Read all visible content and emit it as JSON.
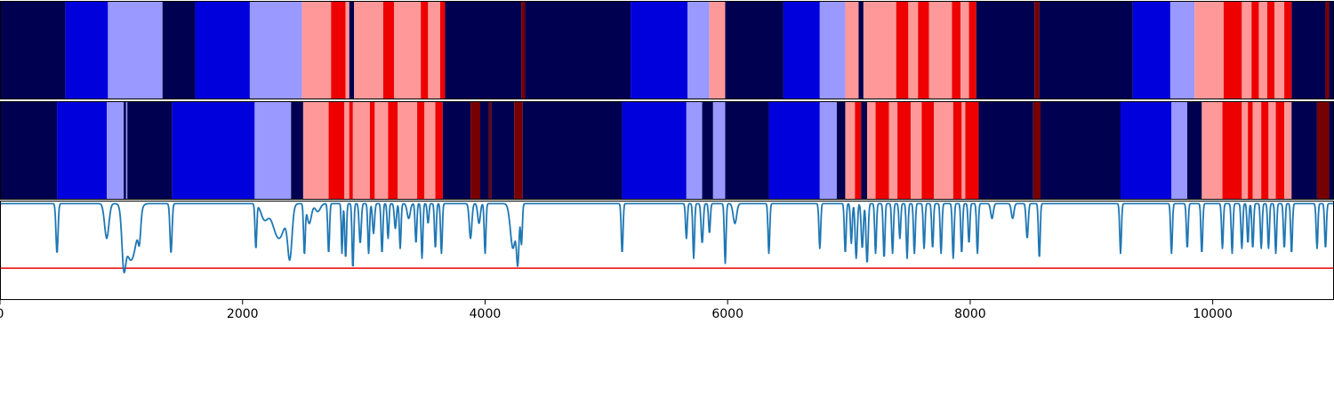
{
  "chart_data": [
    {
      "panel": "segmentation-track-1",
      "type": "heatmap",
      "xlim": [
        0,
        11000
      ],
      "palette": {
        "0": "#000050",
        "1": "#0000dd",
        "2": "#9999ff",
        "3": "#ff9999",
        "4": "#ee0000",
        "5": "#770000"
      },
      "segments": [
        [
          0,
          540,
          0
        ],
        [
          540,
          890,
          1
        ],
        [
          890,
          1340,
          2
        ],
        [
          1340,
          1610,
          0
        ],
        [
          1610,
          2060,
          1
        ],
        [
          2060,
          2490,
          2
        ],
        [
          2490,
          2730,
          3
        ],
        [
          2730,
          2850,
          4
        ],
        [
          2850,
          2880,
          3
        ],
        [
          2880,
          2920,
          0
        ],
        [
          2920,
          3160,
          3
        ],
        [
          3160,
          3250,
          4
        ],
        [
          3250,
          3470,
          3
        ],
        [
          3470,
          3530,
          4
        ],
        [
          3530,
          3630,
          3
        ],
        [
          3630,
          3670,
          4
        ],
        [
          3670,
          4300,
          0
        ],
        [
          4300,
          4330,
          5
        ],
        [
          4330,
          5200,
          0
        ],
        [
          5200,
          5670,
          1
        ],
        [
          5670,
          5850,
          2
        ],
        [
          5850,
          5980,
          3
        ],
        [
          5980,
          6460,
          0
        ],
        [
          6460,
          6760,
          1
        ],
        [
          6760,
          6970,
          2
        ],
        [
          6970,
          7080,
          3
        ],
        [
          7080,
          7120,
          0
        ],
        [
          7120,
          7390,
          3
        ],
        [
          7390,
          7490,
          4
        ],
        [
          7490,
          7570,
          3
        ],
        [
          7570,
          7660,
          4
        ],
        [
          7660,
          7850,
          3
        ],
        [
          7850,
          7920,
          4
        ],
        [
          7920,
          7990,
          3
        ],
        [
          7990,
          8050,
          4
        ],
        [
          8050,
          8530,
          0
        ],
        [
          8530,
          8570,
          5
        ],
        [
          8570,
          9340,
          0
        ],
        [
          9340,
          9650,
          1
        ],
        [
          9650,
          9850,
          2
        ],
        [
          9850,
          10090,
          3
        ],
        [
          10090,
          10240,
          4
        ],
        [
          10240,
          10320,
          3
        ],
        [
          10320,
          10380,
          4
        ],
        [
          10380,
          10450,
          3
        ],
        [
          10450,
          10510,
          4
        ],
        [
          10510,
          10590,
          3
        ],
        [
          10590,
          10650,
          4
        ],
        [
          10650,
          10930,
          0
        ],
        [
          10930,
          10960,
          5
        ],
        [
          10960,
          11000,
          0
        ]
      ]
    },
    {
      "panel": "segmentation-track-2",
      "type": "heatmap",
      "xlim": [
        0,
        11000
      ],
      "palette": {
        "0": "#000050",
        "1": "#0000dd",
        "2": "#9999ff",
        "3": "#ff9999",
        "4": "#ee0000",
        "5": "#770000"
      },
      "segments": [
        [
          0,
          470,
          0
        ],
        [
          470,
          880,
          1
        ],
        [
          880,
          1020,
          2
        ],
        [
          1020,
          1040,
          0
        ],
        [
          1040,
          1050,
          2
        ],
        [
          1050,
          1420,
          0
        ],
        [
          1420,
          2100,
          1
        ],
        [
          2100,
          2400,
          2
        ],
        [
          2400,
          2500,
          0
        ],
        [
          2500,
          2710,
          3
        ],
        [
          2710,
          2840,
          4
        ],
        [
          2840,
          2880,
          3
        ],
        [
          2880,
          2910,
          4
        ],
        [
          2910,
          3050,
          3
        ],
        [
          3050,
          3090,
          4
        ],
        [
          3090,
          3200,
          3
        ],
        [
          3200,
          3280,
          4
        ],
        [
          3280,
          3440,
          3
        ],
        [
          3440,
          3500,
          4
        ],
        [
          3500,
          3590,
          3
        ],
        [
          3590,
          3650,
          4
        ],
        [
          3650,
          3880,
          0
        ],
        [
          3880,
          3960,
          5
        ],
        [
          3960,
          4030,
          0
        ],
        [
          4030,
          4050,
          5
        ],
        [
          4050,
          4240,
          0
        ],
        [
          4240,
          4310,
          5
        ],
        [
          4310,
          5130,
          0
        ],
        [
          5130,
          5660,
          1
        ],
        [
          5660,
          5790,
          2
        ],
        [
          5790,
          5880,
          0
        ],
        [
          5880,
          5980,
          2
        ],
        [
          5980,
          6340,
          0
        ],
        [
          6340,
          6760,
          1
        ],
        [
          6760,
          6900,
          2
        ],
        [
          6900,
          6970,
          0
        ],
        [
          6970,
          7050,
          3
        ],
        [
          7050,
          7100,
          4
        ],
        [
          7100,
          7150,
          0
        ],
        [
          7150,
          7220,
          3
        ],
        [
          7220,
          7330,
          4
        ],
        [
          7330,
          7400,
          3
        ],
        [
          7400,
          7510,
          4
        ],
        [
          7510,
          7600,
          3
        ],
        [
          7600,
          7700,
          4
        ],
        [
          7700,
          7860,
          3
        ],
        [
          7860,
          7930,
          4
        ],
        [
          7930,
          7960,
          3
        ],
        [
          7960,
          8070,
          4
        ],
        [
          8070,
          8520,
          0
        ],
        [
          8520,
          8580,
          5
        ],
        [
          8580,
          9240,
          0
        ],
        [
          9240,
          9660,
          1
        ],
        [
          9660,
          9790,
          2
        ],
        [
          9790,
          9910,
          0
        ],
        [
          9910,
          10080,
          3
        ],
        [
          10080,
          10240,
          4
        ],
        [
          10240,
          10290,
          3
        ],
        [
          10290,
          10330,
          4
        ],
        [
          10330,
          10400,
          3
        ],
        [
          10400,
          10460,
          4
        ],
        [
          10460,
          10520,
          3
        ],
        [
          10520,
          10590,
          4
        ],
        [
          10590,
          10650,
          3
        ],
        [
          10650,
          10860,
          0
        ],
        [
          10860,
          10960,
          5
        ],
        [
          10960,
          11000,
          0
        ]
      ]
    },
    {
      "panel": "signal-line",
      "type": "line",
      "xlim": [
        0,
        11000
      ],
      "ylim": [
        0,
        1
      ],
      "line_color": "#1f77b4",
      "threshold_color": "#ee0000",
      "threshold": 0.32,
      "baseline": 0.97,
      "dips": [
        {
          "x": 470,
          "depth": 0.5,
          "width": 12
        },
        {
          "x": 880,
          "depth": 0.35,
          "width": 25
        },
        {
          "x": 1020,
          "depth": 0.48,
          "width": 22
        },
        {
          "x": 1060,
          "depth": 0.42,
          "width": 45
        },
        {
          "x": 1110,
          "depth": 0.35,
          "width": 45
        },
        {
          "x": 1150,
          "depth": 0.25,
          "width": 15
        },
        {
          "x": 1410,
          "depth": 0.5,
          "width": 12
        },
        {
          "x": 2110,
          "depth": 0.45,
          "width": 10
        },
        {
          "x": 2180,
          "depth": 0.15,
          "width": 40
        },
        {
          "x": 2300,
          "depth": 0.35,
          "width": 70
        },
        {
          "x": 2390,
          "depth": 0.5,
          "width": 25
        },
        {
          "x": 2510,
          "depth": 0.5,
          "width": 10
        },
        {
          "x": 2550,
          "depth": 0.2,
          "width": 25
        },
        {
          "x": 2620,
          "depth": 0.08,
          "width": 30
        },
        {
          "x": 2710,
          "depth": 0.5,
          "width": 10
        },
        {
          "x": 2820,
          "depth": 0.5,
          "width": 8
        },
        {
          "x": 2850,
          "depth": 0.55,
          "width": 10
        },
        {
          "x": 2910,
          "depth": 0.65,
          "width": 10
        },
        {
          "x": 2970,
          "depth": 0.4,
          "width": 12
        },
        {
          "x": 3040,
          "depth": 0.5,
          "width": 10
        },
        {
          "x": 3080,
          "depth": 0.3,
          "width": 12
        },
        {
          "x": 3150,
          "depth": 0.5,
          "width": 10
        },
        {
          "x": 3200,
          "depth": 0.35,
          "width": 10
        },
        {
          "x": 3260,
          "depth": 0.25,
          "width": 12
        },
        {
          "x": 3300,
          "depth": 0.45,
          "width": 10
        },
        {
          "x": 3370,
          "depth": 0.15,
          "width": 18
        },
        {
          "x": 3430,
          "depth": 0.4,
          "width": 10
        },
        {
          "x": 3480,
          "depth": 0.55,
          "width": 10
        },
        {
          "x": 3530,
          "depth": 0.2,
          "width": 10
        },
        {
          "x": 3590,
          "depth": 0.45,
          "width": 10
        },
        {
          "x": 3640,
          "depth": 0.5,
          "width": 10
        },
        {
          "x": 3880,
          "depth": 0.35,
          "width": 15
        },
        {
          "x": 3950,
          "depth": 0.2,
          "width": 15
        },
        {
          "x": 4000,
          "depth": 0.5,
          "width": 10
        },
        {
          "x": 4230,
          "depth": 0.45,
          "width": 30
        },
        {
          "x": 4270,
          "depth": 0.55,
          "width": 15
        },
        {
          "x": 4300,
          "depth": 0.4,
          "width": 10
        },
        {
          "x": 5130,
          "depth": 0.5,
          "width": 10
        },
        {
          "x": 5660,
          "depth": 0.35,
          "width": 10
        },
        {
          "x": 5720,
          "depth": 0.55,
          "width": 10
        },
        {
          "x": 5790,
          "depth": 0.4,
          "width": 12
        },
        {
          "x": 5850,
          "depth": 0.3,
          "width": 10
        },
        {
          "x": 5980,
          "depth": 0.6,
          "width": 10
        },
        {
          "x": 6060,
          "depth": 0.2,
          "width": 20
        },
        {
          "x": 6340,
          "depth": 0.5,
          "width": 10
        },
        {
          "x": 6760,
          "depth": 0.45,
          "width": 10
        },
        {
          "x": 6970,
          "depth": 0.5,
          "width": 10
        },
        {
          "x": 7020,
          "depth": 0.4,
          "width": 10
        },
        {
          "x": 7060,
          "depth": 0.55,
          "width": 12
        },
        {
          "x": 7110,
          "depth": 0.45,
          "width": 12
        },
        {
          "x": 7150,
          "depth": 0.6,
          "width": 12
        },
        {
          "x": 7220,
          "depth": 0.5,
          "width": 10
        },
        {
          "x": 7290,
          "depth": 0.55,
          "width": 10
        },
        {
          "x": 7360,
          "depth": 0.5,
          "width": 10
        },
        {
          "x": 7420,
          "depth": 0.35,
          "width": 10
        },
        {
          "x": 7480,
          "depth": 0.55,
          "width": 10
        },
        {
          "x": 7540,
          "depth": 0.5,
          "width": 10
        },
        {
          "x": 7620,
          "depth": 0.45,
          "width": 10
        },
        {
          "x": 7690,
          "depth": 0.45,
          "width": 10
        },
        {
          "x": 7760,
          "depth": 0.5,
          "width": 10
        },
        {
          "x": 7860,
          "depth": 0.55,
          "width": 10
        },
        {
          "x": 7930,
          "depth": 0.5,
          "width": 10
        },
        {
          "x": 7990,
          "depth": 0.4,
          "width": 10
        },
        {
          "x": 8060,
          "depth": 0.5,
          "width": 10
        },
        {
          "x": 8180,
          "depth": 0.15,
          "width": 15
        },
        {
          "x": 8350,
          "depth": 0.15,
          "width": 15
        },
        {
          "x": 8470,
          "depth": 0.35,
          "width": 12
        },
        {
          "x": 8570,
          "depth": 0.55,
          "width": 10
        },
        {
          "x": 9240,
          "depth": 0.5,
          "width": 10
        },
        {
          "x": 9660,
          "depth": 0.5,
          "width": 10
        },
        {
          "x": 9790,
          "depth": 0.45,
          "width": 10
        },
        {
          "x": 9910,
          "depth": 0.5,
          "width": 10
        },
        {
          "x": 10080,
          "depth": 0.45,
          "width": 10
        },
        {
          "x": 10160,
          "depth": 0.5,
          "width": 10
        },
        {
          "x": 10240,
          "depth": 0.45,
          "width": 10
        },
        {
          "x": 10290,
          "depth": 0.4,
          "width": 10
        },
        {
          "x": 10330,
          "depth": 0.45,
          "width": 10
        },
        {
          "x": 10400,
          "depth": 0.45,
          "width": 10
        },
        {
          "x": 10460,
          "depth": 0.45,
          "width": 10
        },
        {
          "x": 10520,
          "depth": 0.5,
          "width": 10
        },
        {
          "x": 10590,
          "depth": 0.45,
          "width": 10
        },
        {
          "x": 10650,
          "depth": 0.5,
          "width": 10
        },
        {
          "x": 10860,
          "depth": 0.45,
          "width": 10
        },
        {
          "x": 10930,
          "depth": 0.45,
          "width": 10
        }
      ],
      "xticks": [
        0,
        2000,
        4000,
        6000,
        8000,
        10000
      ],
      "xtick_labels": [
        "0",
        "2000",
        "4000",
        "6000",
        "8000",
        "10000"
      ]
    }
  ]
}
